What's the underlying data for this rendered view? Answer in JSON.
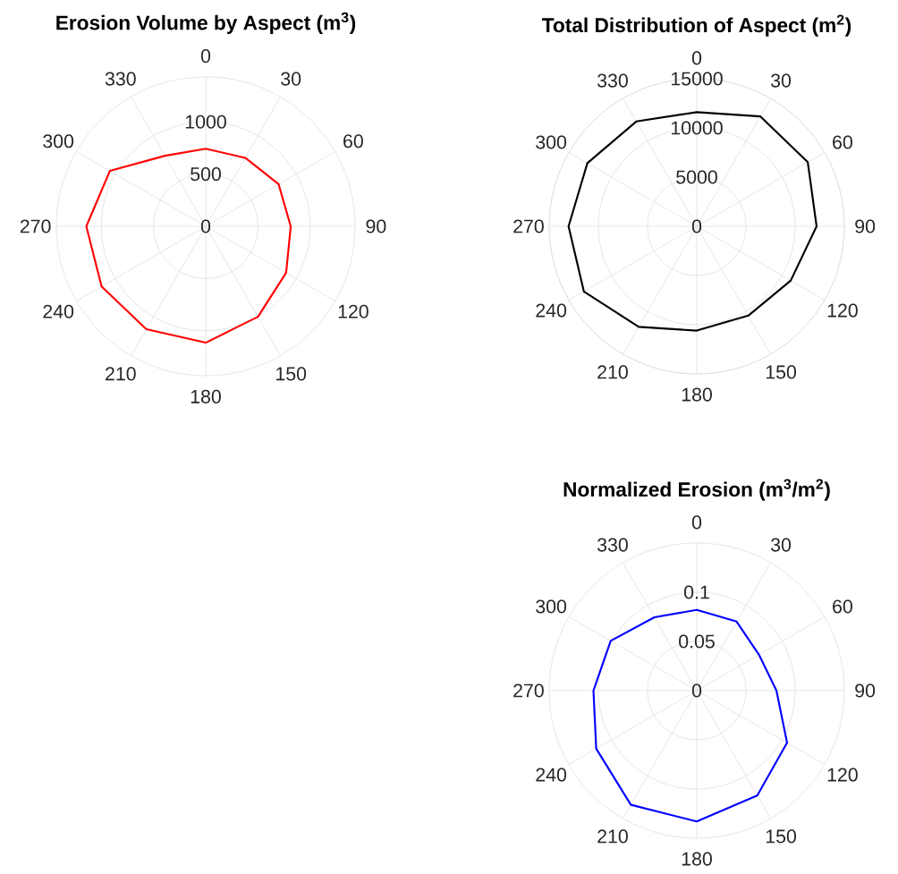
{
  "chart_data": [
    {
      "type": "radar",
      "title": "**Erosion Volume by Aspect (m$^{3}$)**",
      "categories": [
        "0",
        "30",
        "60",
        "90",
        "120",
        "150",
        "180",
        "210",
        "240",
        "270",
        "300",
        "330"
      ],
      "ylim": [
        0,
        1430
      ],
      "yticks": [
        0,
        500,
        1000
      ],
      "grid": true,
      "series": [
        {
          "color": "#ff0000",
          "values": [
            743,
            757,
            806,
            814,
            889,
            1000,
            1114,
            1137,
            1151,
            1143,
            1060,
            780
          ]
        }
      ]
    },
    {
      "type": "radar",
      "title": "**Total Distribution of Aspect (m$^{2}$)**",
      "categories": [
        "0",
        "30",
        "60",
        "90",
        "120",
        "150",
        "180",
        "210",
        "240",
        "270",
        "300",
        "330"
      ],
      "ylim": [
        0,
        15000
      ],
      "yticks": [
        0,
        5000,
        10000,
        15000
      ],
      "grid": true,
      "series": [
        {
          "color": "#000000",
          "values": [
            11600,
            12900,
            13030,
            12180,
            11030,
            10480,
            10600,
            11800,
            13250,
            13030,
            12840,
            12300
          ]
        }
      ]
    },
    {
      "type": "radar",
      "title": "**Normalized Erosion (m$^{3}$/m$^{2}$)**",
      "categories": [
        "0",
        "30",
        "60",
        "90",
        "120",
        "150",
        "180",
        "210",
        "240",
        "270",
        "300",
        "330"
      ],
      "ylim": [
        0,
        0.15
      ],
      "yticks": [
        0,
        0.05,
        0.1
      ],
      "grid": true,
      "series": [
        {
          "color": "#0000ff",
          "values": [
            0.082,
            0.081,
            0.073,
            0.081,
            0.106,
            0.123,
            0.133,
            0.134,
            0.118,
            0.105,
            0.101,
            0.086
          ]
        }
      ]
    }
  ]
}
